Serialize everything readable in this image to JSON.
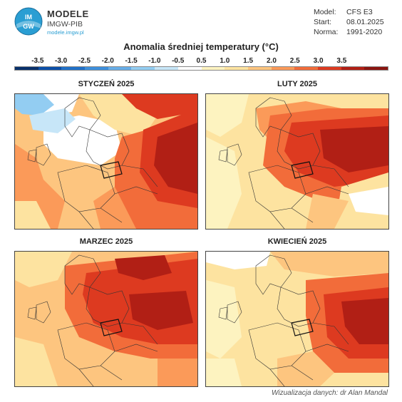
{
  "brand": {
    "logo_text": "IMGW",
    "name": "MODELE",
    "org": "IMGW-PIB",
    "url": "modele.imgw.pl"
  },
  "meta": {
    "model_label": "Model:",
    "model_value": "CFS E3",
    "start_label": "Start:",
    "start_value": "08.01.2025",
    "norma_label": "Norma:",
    "norma_value": "1991-2020"
  },
  "colorbar": {
    "title": "Anomalia średniej temperatury (°C)",
    "tick_labels": [
      "-3.5",
      "-3.0",
      "-2.5",
      "-2.0",
      "-1.5",
      "-1.0",
      "-0.5",
      "0.5",
      "1.0",
      "1.5",
      "2.0",
      "2.5",
      "3.0",
      "3.5"
    ],
    "colors": [
      "#08306b",
      "#0b4fa8",
      "#2171c8",
      "#3d8fdc",
      "#67aee8",
      "#93cdf2",
      "#c7e6f8",
      "#ffffff",
      "#fdf3c0",
      "#fde3a0",
      "#fdc57f",
      "#fb9a59",
      "#f26c3a",
      "#dd3a20",
      "#b11f15",
      "#8a1510"
    ]
  },
  "panels": [
    {
      "title": "STYCZEŃ 2025"
    },
    {
      "title": "LUTY 2025"
    },
    {
      "title": "MARZEC 2025"
    },
    {
      "title": "KWIECIEŃ 2025"
    }
  ],
  "credit": "Wizualizacja danych: dr Alan Mandal"
}
